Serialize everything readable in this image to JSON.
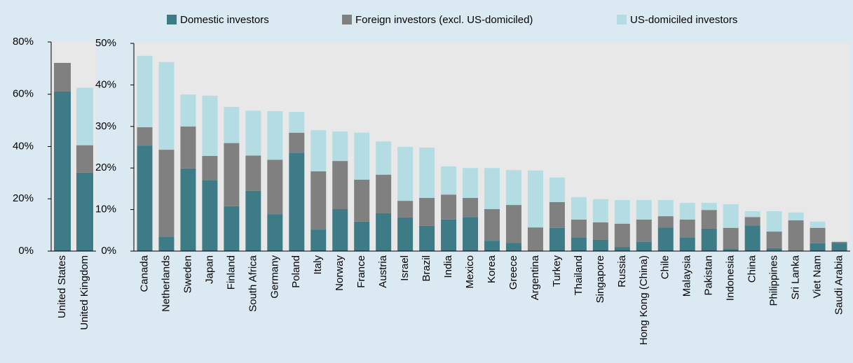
{
  "chart_data": [
    {
      "type": "stacked_bar",
      "categories": [
        "United States",
        "United Kingdom"
      ],
      "series": [
        {
          "name": "Domestic investors",
          "color": "#3d7b87",
          "values": [
            61,
            30
          ]
        },
        {
          "name": "Foreign investors (excl. US-domiciled)",
          "color": "#808080",
          "values": [
            11,
            10.5
          ]
        },
        {
          "name": "US-domiciled investors",
          "color": "#b4dde3",
          "values": [
            0,
            22
          ]
        }
      ],
      "ylim": [
        0,
        80
      ],
      "yticks": [
        {
          "value": 0,
          "label": "0%"
        },
        {
          "value": 20,
          "label": "20%"
        },
        {
          "value": 40,
          "label": "40%"
        },
        {
          "value": 60,
          "label": "60%"
        },
        {
          "value": 80,
          "label": "80%"
        }
      ]
    },
    {
      "type": "stacked_bar",
      "categories": [
        "Canada",
        "Netherlands",
        "Sweden",
        "Japan",
        "Finland",
        "South Africa",
        "Germany",
        "Poland",
        "Italy",
        "Norway",
        "France",
        "Austria",
        "Israel",
        "Brazil",
        "India",
        "Mexico",
        "Korea",
        "Greece",
        "Argentina",
        "Turkey",
        "Thailand",
        "Singapore",
        "Russia",
        "Hong Kong (China)",
        "Chile",
        "Malaysia",
        "Pakistan",
        "Indonesia",
        "China",
        "Philippines",
        "Sri Lanka",
        "Viet Nam",
        "Saudi Arabia"
      ],
      "series": [
        {
          "color": "#3d7b87",
          "values": [
            25.4,
            3.5,
            19.9,
            17,
            10.8,
            14.5,
            8.9,
            23.7,
            5.2,
            10.1,
            7.1,
            9.1,
            8.1,
            6.1,
            7.6,
            8.2,
            2.5,
            2,
            0,
            5.6,
            3.2,
            2.7,
            1,
            2.2,
            5.7,
            3.2,
            5.4,
            0.5,
            6.2,
            0.7,
            0,
            1.9,
            2
          ]
        },
        {
          "color": "#808080",
          "values": [
            4.4,
            20.9,
            10.1,
            5.9,
            15.2,
            8.5,
            13.1,
            4.8,
            14,
            11.6,
            10.1,
            9.3,
            4,
            6.7,
            6,
            4.6,
            7.6,
            9.1,
            5.7,
            6.2,
            4.4,
            4.2,
            5.6,
            5.4,
            2.7,
            4.4,
            4.5,
            5.1,
            2,
            4,
            7.4,
            3.7,
            0.2
          ]
        },
        {
          "color": "#b4dde3",
          "values": [
            17.2,
            21.1,
            7.7,
            14.5,
            8.7,
            10.8,
            11.7,
            5,
            9.9,
            7.1,
            11.3,
            8,
            13,
            12.1,
            6.8,
            7.2,
            9.9,
            8.4,
            13.7,
            5.9,
            5.4,
            5.6,
            5.7,
            4.7,
            3.9,
            4,
            1.7,
            5.7,
            1.4,
            4.9,
            1.9,
            1.5,
            0.2
          ]
        }
      ],
      "ylim": [
        0,
        50
      ],
      "yticks": [
        {
          "value": 0,
          "label": "0%"
        },
        {
          "value": 10,
          "label": "10%"
        },
        {
          "value": 20,
          "label": "20%"
        },
        {
          "value": 30,
          "label": "30%"
        },
        {
          "value": 40,
          "label": "40%"
        },
        {
          "value": 50,
          "label": "50%"
        }
      ]
    }
  ]
}
